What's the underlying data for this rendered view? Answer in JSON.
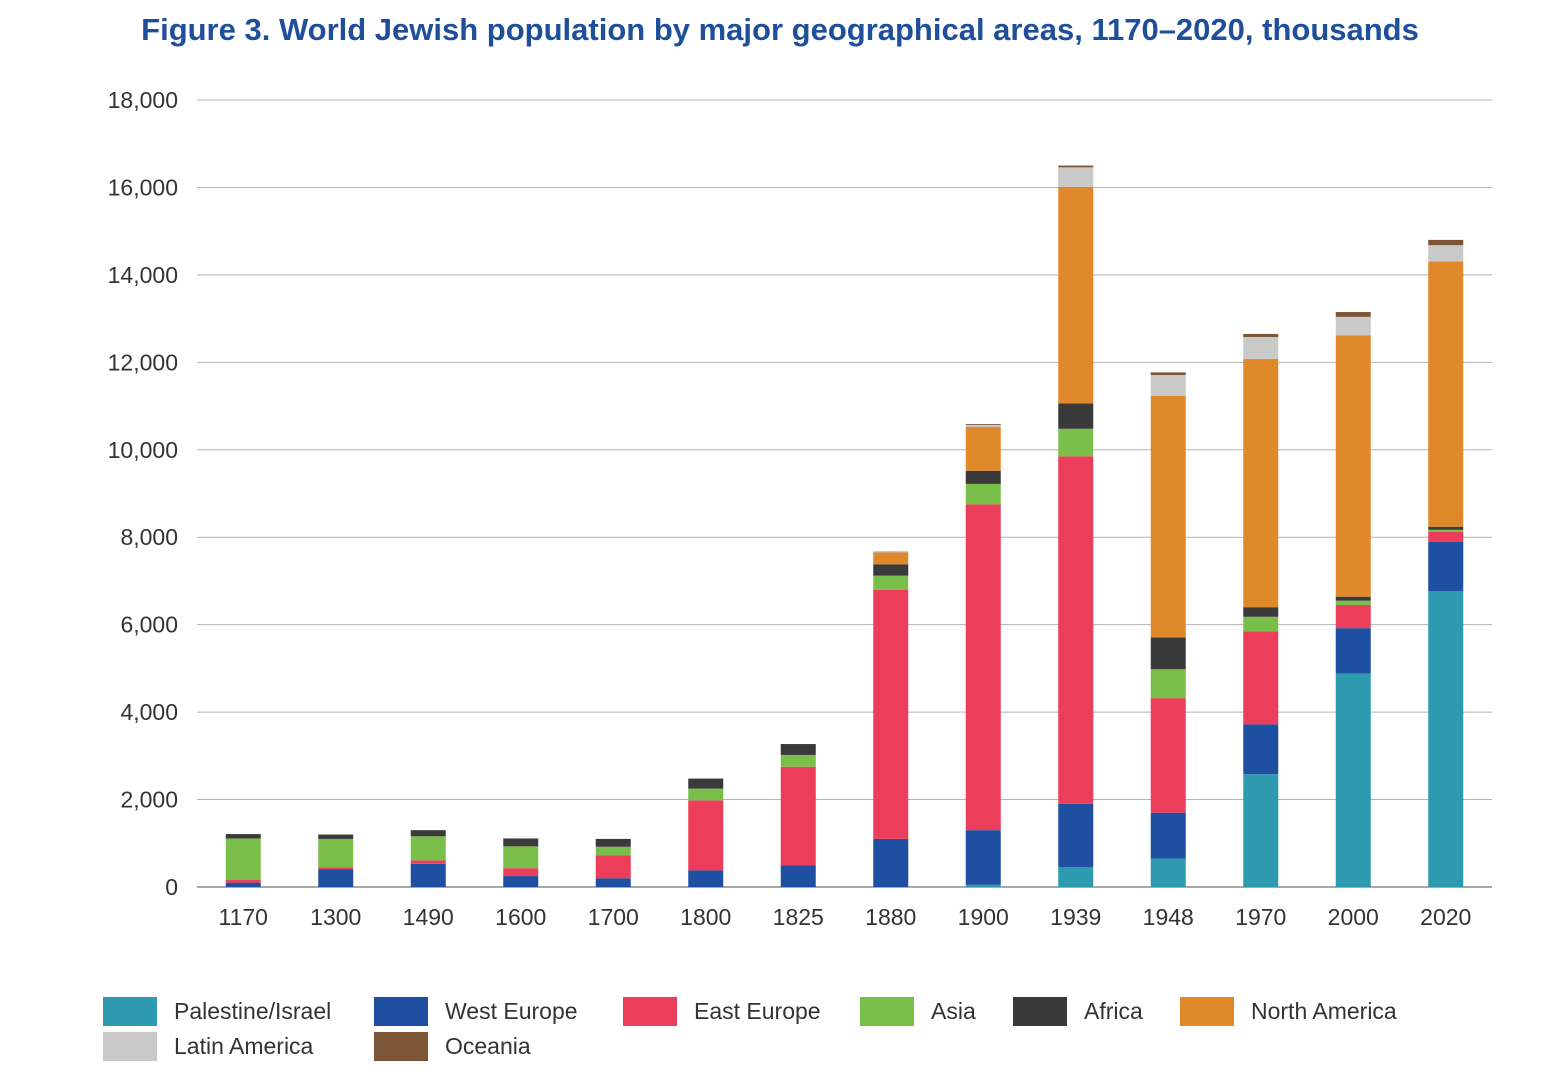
{
  "chart_data": {
    "type": "bar",
    "stacked": true,
    "title": "Figure 3. World Jewish population by major geographical areas, 1170–2020, thousands",
    "xlabel": "",
    "ylabel": "",
    "ylim": [
      0,
      18000
    ],
    "yticks": [
      0,
      2000,
      4000,
      6000,
      8000,
      10000,
      12000,
      14000,
      16000,
      18000
    ],
    "ytick_labels": [
      "0",
      "2,000",
      "4,000",
      "6,000",
      "8,000",
      "10,000",
      "12,000",
      "14,000",
      "16,000",
      "18,000"
    ],
    "grid": true,
    "legend_position": "bottom",
    "categories": [
      "1170",
      "1300",
      "1490",
      "1600",
      "1700",
      "1800",
      "1825",
      "1880",
      "1900",
      "1939",
      "1948",
      "1970",
      "2000",
      "2020"
    ],
    "series": [
      {
        "name": "Palestine/Israel",
        "color": "#2e9aaf",
        "values": [
          0,
          0,
          0,
          0,
          0,
          0,
          0,
          0,
          50,
          450,
          650,
          2580,
          4880,
          6770
        ]
      },
      {
        "name": "West Europe",
        "color": "#1f4fa0",
        "values": [
          100,
          400,
          530,
          250,
          200,
          380,
          500,
          1100,
          1250,
          1450,
          1050,
          1140,
          1040,
          1120
        ]
      },
      {
        "name": "East Europe",
        "color": "#ec3d5a",
        "values": [
          60,
          50,
          80,
          180,
          520,
          1600,
          2250,
          5700,
          7450,
          7950,
          2620,
          2130,
          530,
          230
        ]
      },
      {
        "name": "Asia",
        "color": "#7abf4a",
        "values": [
          950,
          650,
          550,
          500,
          200,
          270,
          270,
          320,
          470,
          630,
          660,
          330,
          100,
          50
        ]
      },
      {
        "name": "Africa",
        "color": "#3a3a3a",
        "values": [
          100,
          100,
          140,
          180,
          180,
          230,
          250,
          260,
          300,
          580,
          730,
          220,
          90,
          70
        ]
      },
      {
        "name": "North America",
        "color": "#e0892b",
        "values": [
          0,
          0,
          0,
          0,
          0,
          0,
          0,
          270,
          1000,
          4950,
          5520,
          5680,
          5980,
          6070
        ]
      },
      {
        "name": "Latin America",
        "color": "#c9c9c9",
        "values": [
          0,
          0,
          0,
          0,
          0,
          0,
          0,
          10,
          50,
          450,
          480,
          500,
          420,
          370
        ]
      },
      {
        "name": "Oceania",
        "color": "#7b5535",
        "values": [
          0,
          0,
          0,
          0,
          0,
          0,
          0,
          10,
          20,
          40,
          60,
          70,
          110,
          120
        ]
      }
    ]
  }
}
